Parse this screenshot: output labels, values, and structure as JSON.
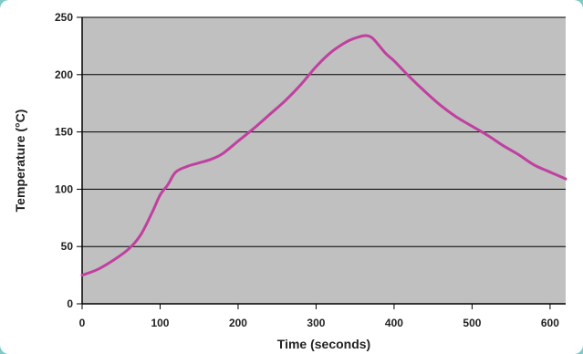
{
  "colors": {
    "frame_background": "#7ccbc5",
    "card": "#ffffff",
    "plot_background": "#c0c0c0",
    "gridline": "#000000",
    "series_line": "#c040a0",
    "text": "#222222"
  },
  "chart_data": {
    "type": "line",
    "title": "",
    "xlabel": "Time (seconds)",
    "ylabel": "Temperature (°C)",
    "xlim": [
      0,
      620
    ],
    "ylim": [
      0,
      250
    ],
    "x_ticks": [
      0,
      100,
      200,
      300,
      400,
      500,
      600
    ],
    "y_ticks": [
      0,
      50,
      100,
      150,
      200,
      250
    ],
    "grid": "horizontal",
    "legend": "none",
    "series": [
      {
        "x": [
          0,
          20,
          40,
          60,
          75,
          90,
          100,
          110,
          120,
          135,
          150,
          165,
          180,
          200,
          220,
          240,
          260,
          280,
          300,
          320,
          340,
          355,
          365,
          372,
          380,
          390,
          400,
          420,
          440,
          460,
          480,
          500,
          520,
          540,
          560,
          580,
          600,
          620
        ],
        "y": [
          25,
          30,
          38,
          48,
          60,
          80,
          95,
          104,
          115,
          120,
          123,
          126,
          131,
          142,
          153,
          165,
          177,
          191,
          207,
          220,
          229,
          233,
          234,
          232,
          226,
          218,
          212,
          198,
          185,
          173,
          163,
          155,
          147,
          138,
          130,
          121,
          115,
          109
        ]
      }
    ]
  }
}
